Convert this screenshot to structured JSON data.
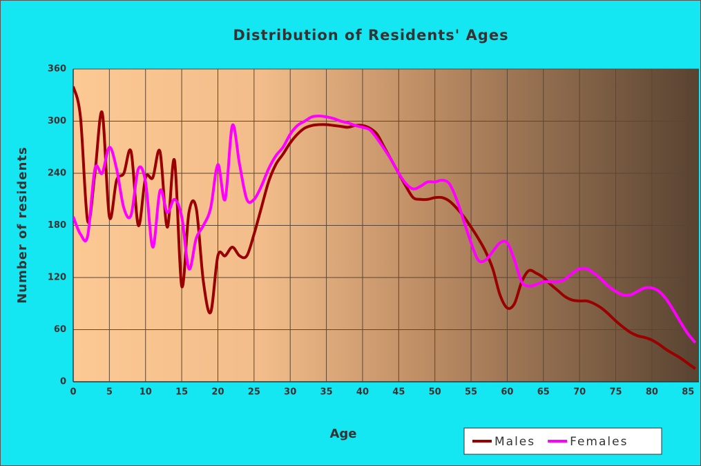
{
  "chart_data": {
    "type": "line",
    "title": "Distribution of Residents' Ages",
    "x_label": "Age",
    "y_label": "Number of residents",
    "x": [
      0,
      1,
      2,
      3,
      4,
      5,
      6,
      7,
      8,
      9,
      10,
      11,
      12,
      13,
      14,
      15,
      16,
      17,
      18,
      19,
      20,
      21,
      22,
      23,
      24,
      25,
      26,
      27,
      28,
      29,
      30,
      31,
      32,
      33,
      34,
      35,
      36,
      37,
      38,
      39,
      40,
      41,
      42,
      43,
      44,
      45,
      46,
      47,
      48,
      49,
      50,
      51,
      52,
      53,
      54,
      55,
      56,
      57,
      58,
      59,
      60,
      61,
      62,
      63,
      64,
      65,
      66,
      67,
      68,
      69,
      70,
      71,
      72,
      73,
      74,
      75,
      76,
      77,
      78,
      79,
      80,
      81,
      82,
      83,
      84,
      85,
      86
    ],
    "series": [
      {
        "name": "Males",
        "color": "#990000",
        "values": [
          340,
          305,
          185,
          240,
          310,
          190,
          232,
          240,
          265,
          180,
          235,
          235,
          265,
          178,
          255,
          110,
          195,
          200,
          115,
          80,
          145,
          145,
          155,
          145,
          145,
          170,
          200,
          230,
          250,
          262,
          275,
          285,
          292,
          295,
          296,
          296,
          295,
          294,
          293,
          295,
          295,
          292,
          285,
          270,
          255,
          240,
          225,
          212,
          210,
          210,
          212,
          212,
          208,
          200,
          190,
          178,
          165,
          150,
          130,
          100,
          85,
          90,
          115,
          128,
          125,
          120,
          112,
          105,
          98,
          94,
          93,
          93,
          90,
          85,
          78,
          70,
          63,
          57,
          53,
          51,
          48,
          43,
          37,
          32,
          27,
          21,
          15
        ]
      },
      {
        "name": "Females",
        "color": "#ff00ff",
        "values": [
          190,
          170,
          168,
          245,
          240,
          270,
          245,
          200,
          192,
          245,
          230,
          155,
          220,
          195,
          210,
          190,
          130,
          165,
          180,
          200,
          250,
          210,
          295,
          250,
          210,
          210,
          225,
          245,
          260,
          270,
          285,
          295,
          300,
          305,
          306,
          305,
          303,
          300,
          298,
          295,
          293,
          290,
          280,
          268,
          255,
          240,
          228,
          222,
          225,
          230,
          230,
          232,
          228,
          210,
          185,
          160,
          140,
          140,
          150,
          160,
          160,
          140,
          115,
          110,
          112,
          115,
          115,
          115,
          118,
          125,
          130,
          130,
          125,
          118,
          110,
          104,
          100,
          100,
          104,
          108,
          108,
          104,
          95,
          82,
          68,
          55,
          45
        ]
      }
    ],
    "xlim": [
      0,
      86.5
    ],
    "xticks": [
      0,
      5,
      10,
      15,
      20,
      25,
      30,
      35,
      40,
      45,
      50,
      55,
      60,
      65,
      70,
      75,
      80,
      85
    ],
    "ylim": [
      0,
      360
    ],
    "yticks": [
      0,
      60,
      120,
      180,
      240,
      300,
      360
    ],
    "grid": true,
    "legend": "bottom-right"
  }
}
